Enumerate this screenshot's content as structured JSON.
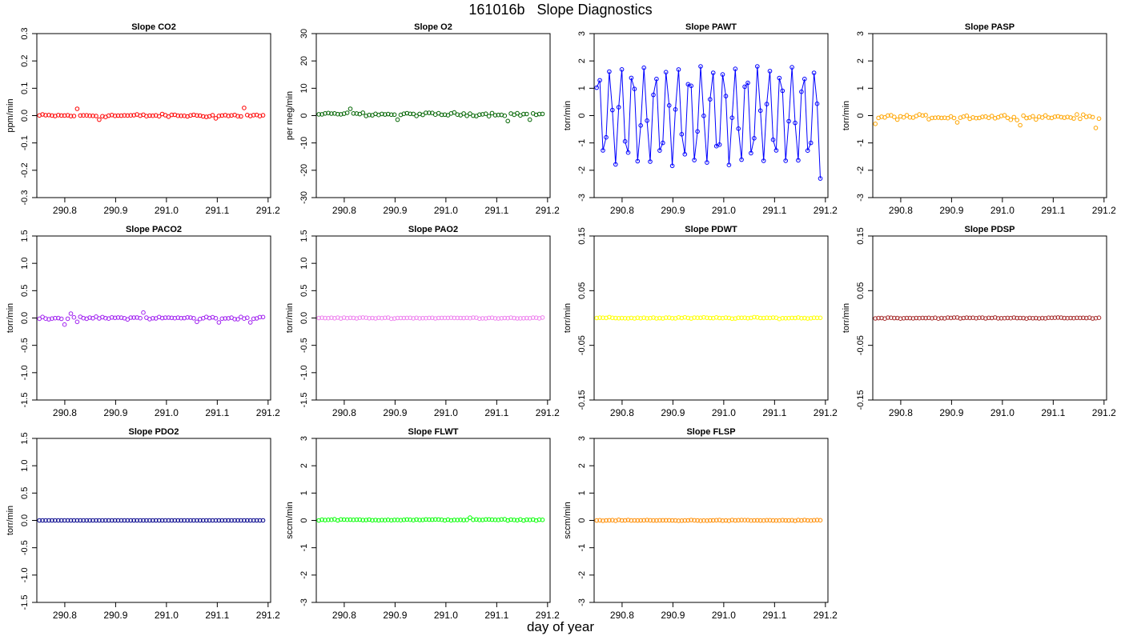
{
  "title": "161016b   Slope Diagnostics",
  "xlabel": "day of year",
  "x_ticks": [
    "290.8",
    "290.9",
    "291.0",
    "291.1",
    "291.2"
  ],
  "chart_data": [
    {
      "type": "scatter",
      "title": "Slope CO2",
      "ylabel": "ppm/min",
      "color": "#ff0000",
      "xlim": [
        290.745,
        291.205
      ],
      "ylim": [
        -0.3,
        0.3
      ],
      "yticks": [
        "-0.3",
        "-0.2",
        "-0.1",
        "0.0",
        "0.1",
        "0.2",
        "0.3"
      ],
      "x_range": [
        290.75,
        291.19
      ],
      "y_center": 0.0,
      "y_noise": 0.008,
      "spikes": [
        [
          12,
          0.025
        ],
        [
          19,
          -0.015
        ],
        [
          56,
          -0.01
        ],
        [
          65,
          0.028
        ]
      ]
    },
    {
      "type": "scatter",
      "title": "Slope O2",
      "ylabel": "per meg/min",
      "color": "#006400",
      "xlim": [
        290.745,
        291.205
      ],
      "ylim": [
        -30,
        30
      ],
      "yticks": [
        "-30",
        "-20",
        "-10",
        "0",
        "10",
        "20",
        "30"
      ],
      "x_range": [
        290.75,
        291.19
      ],
      "y_center": 0.5,
      "y_noise": 0.9,
      "spikes": [
        [
          10,
          2.5
        ],
        [
          25,
          -1.5
        ],
        [
          60,
          -2
        ],
        [
          67,
          -1.5
        ]
      ]
    },
    {
      "type": "line",
      "title": "Slope PAWT",
      "ylabel": "torr/min",
      "color": "#0000ff",
      "xlim": [
        290.745,
        291.205
      ],
      "ylim": [
        -3,
        3
      ],
      "yticks": [
        "-3",
        "-2",
        "-1",
        "0",
        "1",
        "2",
        "3"
      ],
      "x_range": [
        290.75,
        291.19
      ],
      "oscillation": {
        "amplitude": 1.75,
        "period": 0.0224
      },
      "end_value": -2.3
    },
    {
      "type": "scatter",
      "title": "Slope PASP",
      "ylabel": "torr/min",
      "color": "#ffa500",
      "xlim": [
        290.745,
        291.205
      ],
      "ylim": [
        -3,
        3
      ],
      "yticks": [
        "-3",
        "-2",
        "-1",
        "0",
        "1",
        "2",
        "3"
      ],
      "x_range": [
        290.75,
        291.19
      ],
      "y_center": -0.05,
      "y_noise": 0.12,
      "spikes": [
        [
          0,
          -0.3
        ],
        [
          26,
          -0.25
        ],
        [
          46,
          -0.35
        ],
        [
          70,
          -0.45
        ]
      ]
    },
    {
      "type": "scatter",
      "title": "Slope PACO2",
      "ylabel": "torr/min",
      "color": "#a020f0",
      "xlim": [
        290.745,
        291.205
      ],
      "ylim": [
        -1.5,
        1.5
      ],
      "yticks": [
        "-1.5",
        "-1.0",
        "-0.5",
        "0.0",
        "0.5",
        "1.0",
        "1.5"
      ],
      "x_range": [
        290.75,
        291.19
      ],
      "y_center": 0.0,
      "y_noise": 0.035,
      "spikes": [
        [
          8,
          -0.12
        ],
        [
          10,
          0.08
        ],
        [
          12,
          -0.07
        ],
        [
          33,
          0.1
        ],
        [
          50,
          -0.07
        ],
        [
          57,
          -0.08
        ],
        [
          67,
          -0.08
        ]
      ]
    },
    {
      "type": "scatter",
      "title": "Slope PAO2",
      "ylabel": "torr/min",
      "color": "#ee82ee",
      "xlim": [
        290.745,
        291.205
      ],
      "ylim": [
        -1.5,
        1.5
      ],
      "yticks": [
        "-1.5",
        "-1.0",
        "-0.5",
        "0.0",
        "0.5",
        "1.0",
        "1.5"
      ],
      "x_range": [
        290.75,
        291.19
      ],
      "y_center": 0.0,
      "y_noise": 0.015,
      "spikes": []
    },
    {
      "type": "scatter",
      "title": "Slope PDWT",
      "ylabel": "torr/min",
      "color": "#ffff00",
      "xlim": [
        290.745,
        291.205
      ],
      "ylim": [
        -0.15,
        0.15
      ],
      "yticks": [
        "-0.15",
        "-0.05",
        "0.05",
        "0.15"
      ],
      "x_range": [
        290.75,
        291.19
      ],
      "y_center": 0.0,
      "y_noise": 0.002,
      "spikes": []
    },
    {
      "type": "scatter",
      "title": "Slope PDSP",
      "ylabel": "torr/min",
      "color": "#a52a2a",
      "xlim": [
        290.745,
        291.205
      ],
      "ylim": [
        -0.15,
        0.15
      ],
      "yticks": [
        "-0.15",
        "-0.05",
        "0.05",
        "0.15"
      ],
      "x_range": [
        290.75,
        291.19
      ],
      "y_center": 0.0,
      "y_noise": 0.0015,
      "spikes": []
    },
    {
      "type": "scatter",
      "title": "Slope PDO2",
      "ylabel": "torr/min",
      "color": "#00008b",
      "xlim": [
        290.745,
        291.205
      ],
      "ylim": [
        -1.5,
        1.5
      ],
      "yticks": [
        "-1.5",
        "-1.0",
        "-0.5",
        "0.0",
        "0.5",
        "1.0",
        "1.5"
      ],
      "x_range": [
        290.75,
        291.19
      ],
      "y_center": 0.0,
      "y_noise": 0.0,
      "spikes": []
    },
    {
      "type": "scatter",
      "title": "Slope FLWT",
      "ylabel": "sccm/min",
      "color": "#00ff00",
      "xlim": [
        290.745,
        291.205
      ],
      "ylim": [
        -3,
        3
      ],
      "yticks": [
        "-3",
        "-2",
        "-1",
        "0",
        "1",
        "2",
        "3"
      ],
      "x_range": [
        290.75,
        291.19
      ],
      "y_center": 0.02,
      "y_noise": 0.03,
      "spikes": [
        [
          48,
          0.1
        ]
      ]
    },
    {
      "type": "scatter",
      "title": "Slope FLSP",
      "ylabel": "sccm/min",
      "color": "#ff8c00",
      "xlim": [
        290.745,
        291.205
      ],
      "ylim": [
        -3,
        3
      ],
      "yticks": [
        "-3",
        "-2",
        "-1",
        "0",
        "1",
        "2",
        "3"
      ],
      "x_range": [
        290.75,
        291.19
      ],
      "y_center": 0.0,
      "y_noise": 0.025,
      "spikes": []
    }
  ]
}
